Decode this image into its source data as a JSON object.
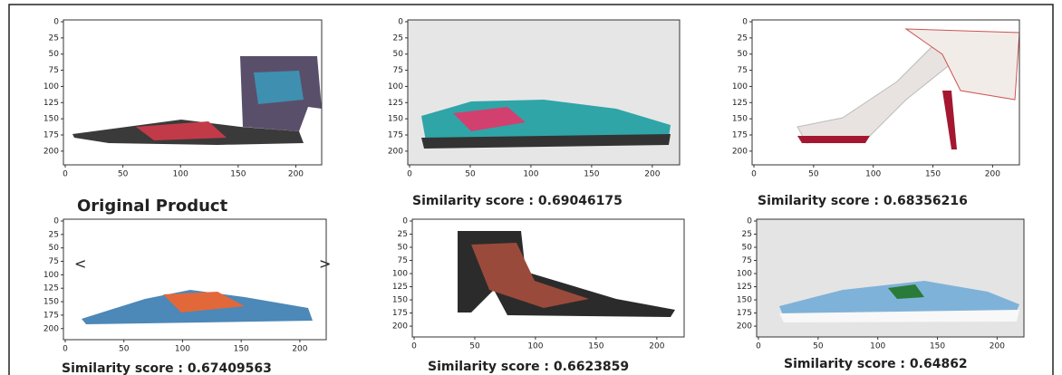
{
  "axes": {
    "yticks": [
      0,
      25,
      50,
      75,
      100,
      125,
      150,
      175,
      200
    ],
    "xticks": [
      0,
      50,
      100,
      150,
      200
    ]
  },
  "panels": [
    {
      "caption": "Original Product"
    },
    {
      "caption": "Similarity score :  0.69046175"
    },
    {
      "caption": "Similarity score :  0.68356216"
    },
    {
      "caption": "Similarity score :  0.67409563"
    },
    {
      "caption": "Similarity score :  0.6623859"
    },
    {
      "caption": "Similarity score :  0.64862"
    }
  ],
  "nav": {
    "prev": "<",
    "next": ">"
  }
}
